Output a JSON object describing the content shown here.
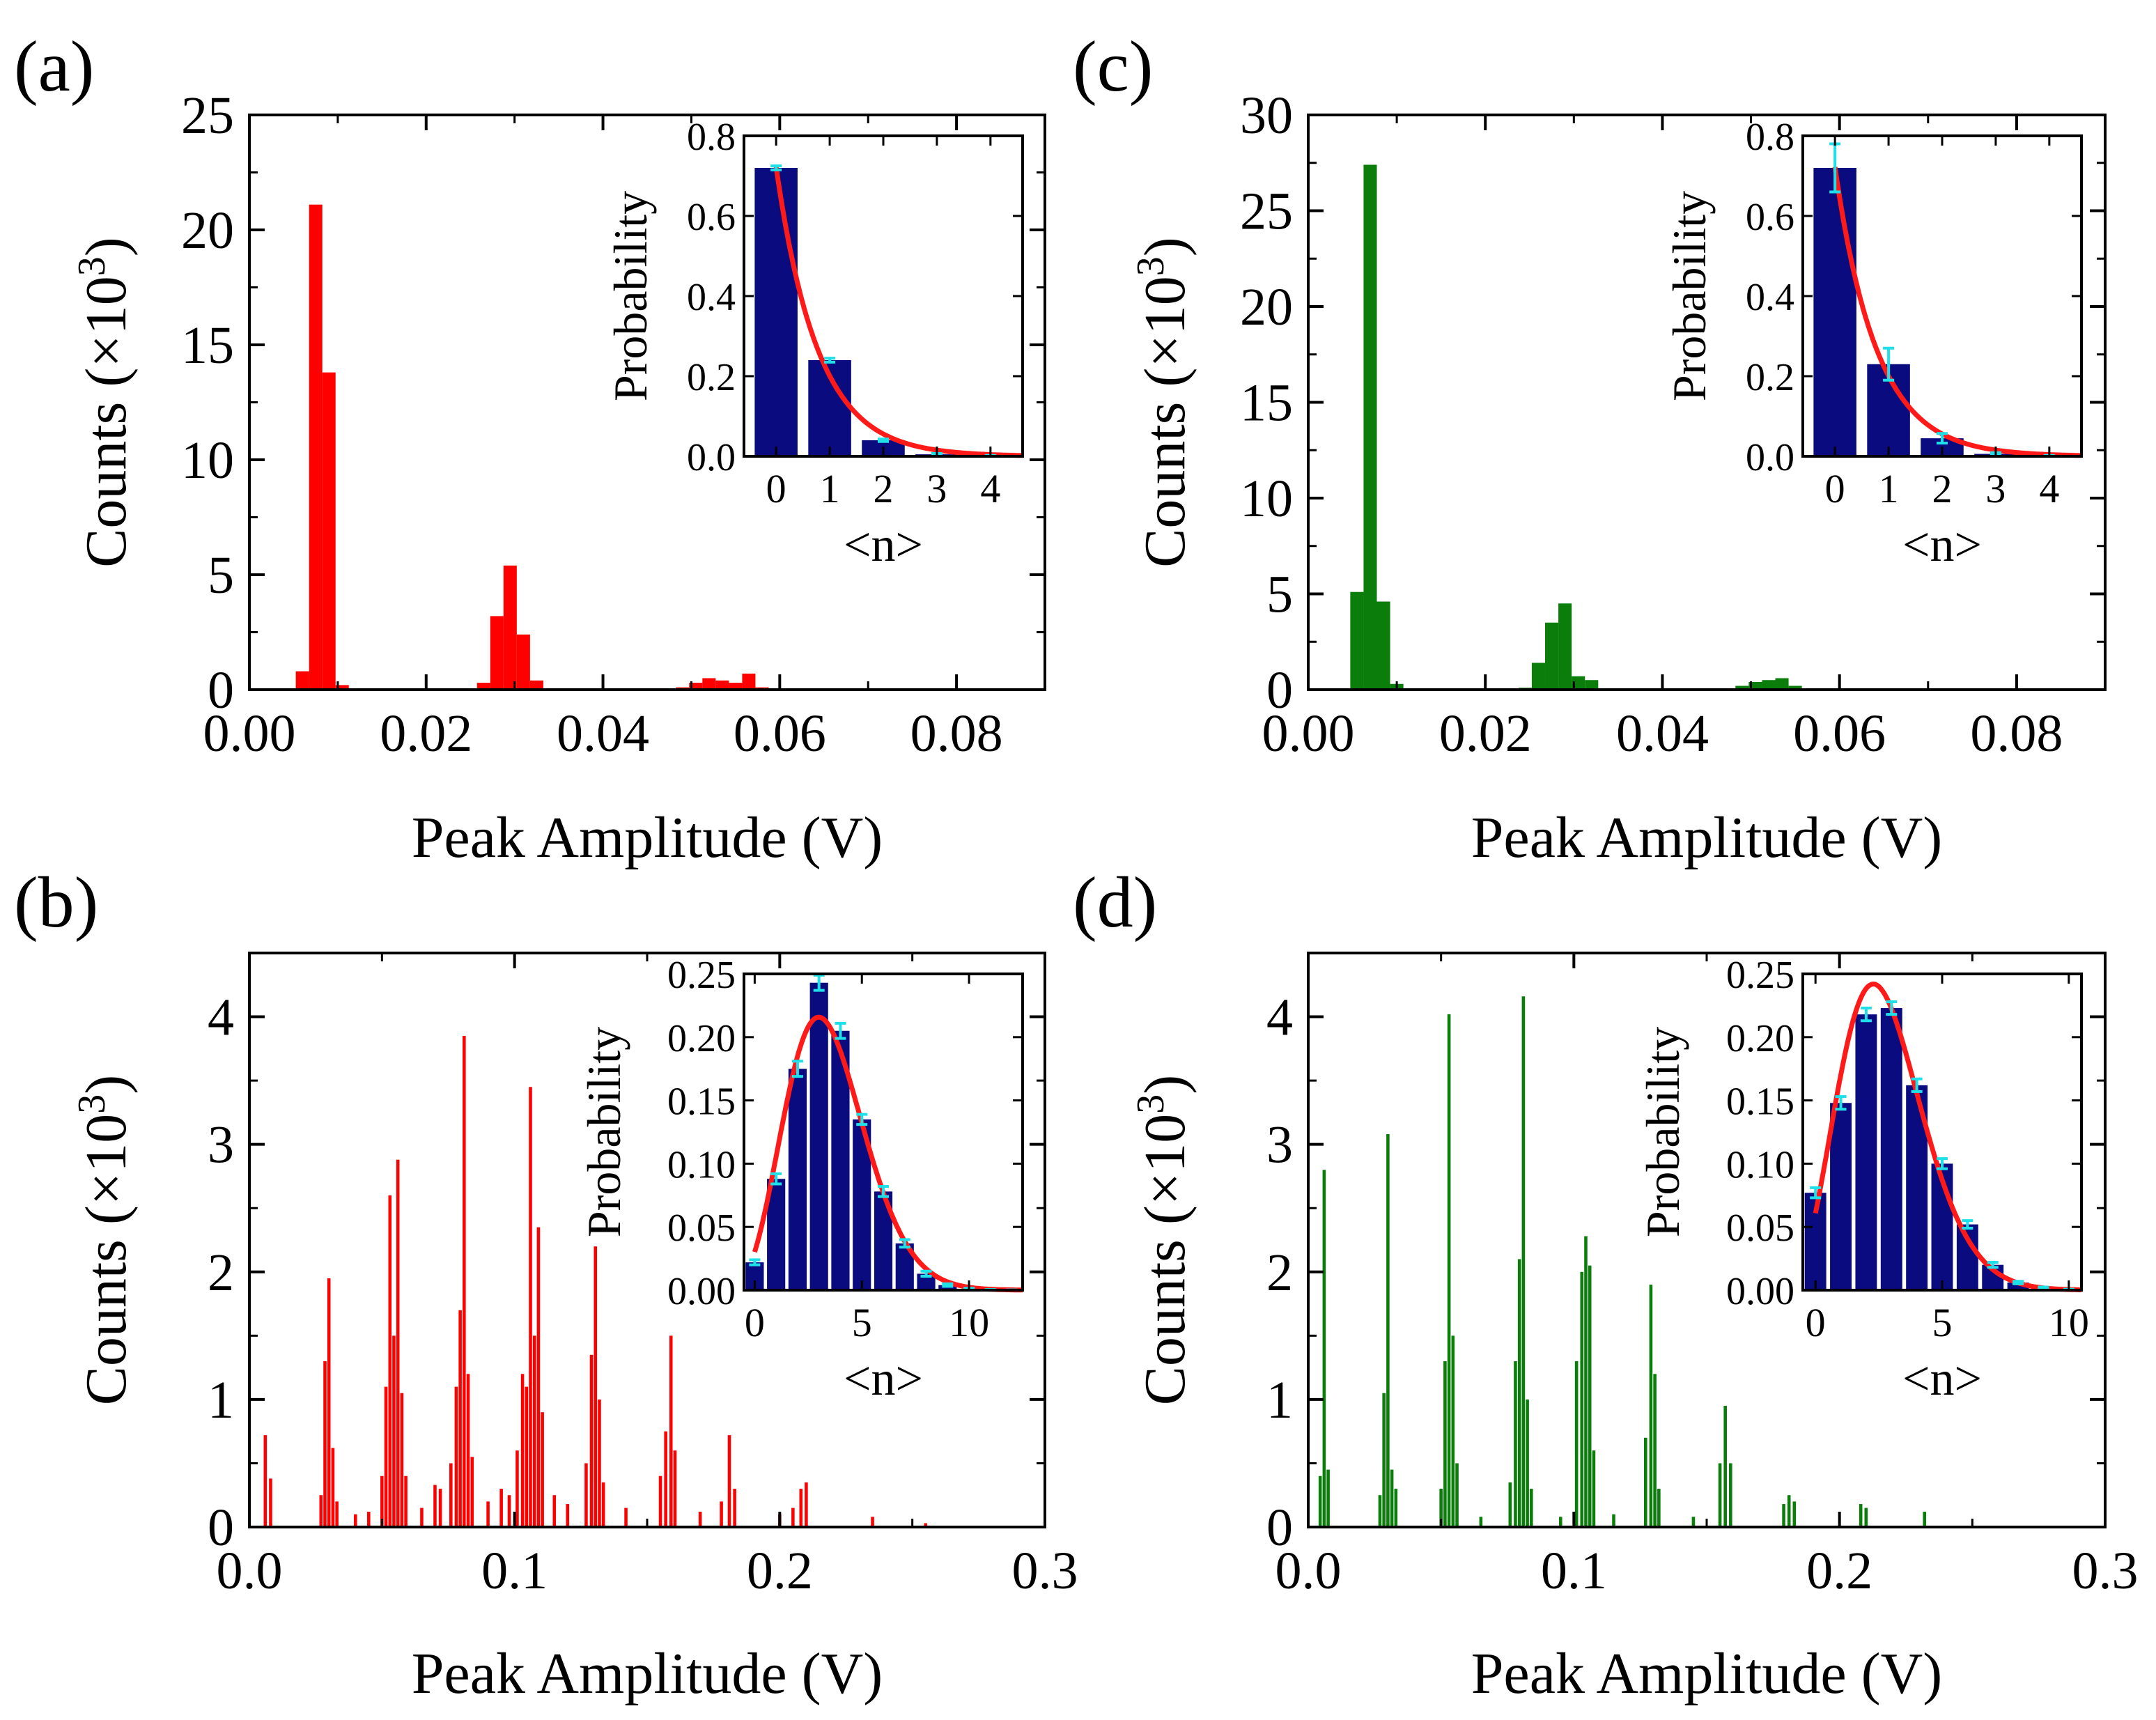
{
  "figure": {
    "colors": {
      "red_bars": "#ff0000",
      "green_bars": "#0a7d0a",
      "inset_bars": "#0b0b80",
      "fit_curve": "#ff1a1a",
      "error_bars": "#1fe0e8",
      "axis": "#000000"
    }
  },
  "chart_data": [
    {
      "panel": "(a)",
      "type": "bar",
      "color": "#ff0000",
      "xlabel": "Peak Amplitude (V)",
      "ylabel": "Counts (×10",
      "ylabel_sup": "3",
      "ylabel_close": ")",
      "xlim": [
        0,
        0.09
      ],
      "ylim": [
        0,
        25
      ],
      "xticks": [
        0.0,
        0.02,
        0.04,
        0.06,
        0.08
      ],
      "xtick_labels": [
        "0.00",
        "0.02",
        "0.04",
        "0.06",
        "0.08"
      ],
      "yticks": [
        0,
        5,
        10,
        15,
        20,
        25
      ],
      "ytick_labels": [
        "0",
        "5",
        "10",
        "15",
        "20",
        "25"
      ],
      "bin_width": 0.0015,
      "bars": [
        [
          0.006,
          0.8
        ],
        [
          0.0075,
          21.1
        ],
        [
          0.009,
          13.8
        ],
        [
          0.0105,
          0.2
        ],
        [
          0.0265,
          0.3
        ],
        [
          0.028,
          3.2
        ],
        [
          0.0295,
          5.4
        ],
        [
          0.031,
          2.4
        ],
        [
          0.0325,
          0.4
        ],
        [
          0.049,
          0.1
        ],
        [
          0.0505,
          0.3
        ],
        [
          0.052,
          0.5
        ],
        [
          0.0535,
          0.4
        ],
        [
          0.055,
          0.3
        ],
        [
          0.0565,
          0.7
        ],
        [
          0.058,
          0.1
        ],
        [
          0.08,
          0.05
        ]
      ],
      "inset": {
        "xlabel": "<n>",
        "ylabel": "Probability",
        "xlim": [
          -0.6,
          4.6
        ],
        "ylim": [
          0,
          0.8
        ],
        "xticks": [
          0,
          1,
          2,
          3,
          4
        ],
        "xtick_labels": [
          "0",
          "1",
          "2",
          "3",
          "4"
        ],
        "yticks": [
          0.0,
          0.2,
          0.4,
          0.6,
          0.8
        ],
        "ytick_labels": [
          "0.0",
          "0.2",
          "0.4",
          "0.6",
          "0.8"
        ],
        "bar_width": 0.8,
        "bars": [
          [
            0,
            0.72
          ],
          [
            1,
            0.24
          ],
          [
            2,
            0.04
          ],
          [
            3,
            0.005
          ],
          [
            4,
            0.001
          ]
        ],
        "errors": [
          0.005,
          0.005,
          0.003,
          0.002,
          0.001
        ],
        "fit": {
          "model": "thermal",
          "mean": 0.385
        }
      }
    },
    {
      "panel": "(b)",
      "type": "bar",
      "color": "#ff0000",
      "xlabel": "Peak Amplitude (V)",
      "ylabel": "Counts (×10",
      "ylabel_sup": "3",
      "ylabel_close": ")",
      "xlim": [
        0,
        0.3
      ],
      "ylim": [
        0,
        4.5
      ],
      "xticks": [
        0.0,
        0.1,
        0.2,
        0.3
      ],
      "xtick_labels": [
        "0.0",
        "0.1",
        "0.2",
        "0.3"
      ],
      "yticks": [
        0,
        1,
        2,
        3,
        4
      ],
      "ytick_labels": [
        "0",
        "1",
        "2",
        "3",
        "4"
      ],
      "bin_width": 0.0012,
      "bars": [
        [
          0.006,
          0.72
        ],
        [
          0.008,
          0.38
        ],
        [
          0.027,
          0.25
        ],
        [
          0.0285,
          1.3
        ],
        [
          0.03,
          1.95
        ],
        [
          0.0315,
          0.62
        ],
        [
          0.033,
          0.2
        ],
        [
          0.04,
          0.1
        ],
        [
          0.045,
          0.12
        ],
        [
          0.05,
          0.4
        ],
        [
          0.0515,
          1.1
        ],
        [
          0.053,
          2.6
        ],
        [
          0.0545,
          1.5
        ],
        [
          0.056,
          2.88
        ],
        [
          0.0575,
          1.05
        ],
        [
          0.059,
          0.4
        ],
        [
          0.065,
          0.15
        ],
        [
          0.07,
          0.33
        ],
        [
          0.072,
          0.3
        ],
        [
          0.076,
          0.5
        ],
        [
          0.078,
          1.1
        ],
        [
          0.0795,
          1.7
        ],
        [
          0.081,
          3.85
        ],
        [
          0.0825,
          1.2
        ],
        [
          0.084,
          0.55
        ],
        [
          0.09,
          0.2
        ],
        [
          0.095,
          0.3
        ],
        [
          0.098,
          0.25
        ],
        [
          0.101,
          0.6
        ],
        [
          0.103,
          1.2
        ],
        [
          0.1045,
          1.1
        ],
        [
          0.106,
          3.45
        ],
        [
          0.1075,
          1.5
        ],
        [
          0.109,
          2.35
        ],
        [
          0.1105,
          0.9
        ],
        [
          0.115,
          0.25
        ],
        [
          0.12,
          0.18
        ],
        [
          0.127,
          0.5
        ],
        [
          0.129,
          1.35
        ],
        [
          0.1305,
          2.2
        ],
        [
          0.132,
          1.0
        ],
        [
          0.1335,
          0.35
        ],
        [
          0.142,
          0.15
        ],
        [
          0.155,
          0.4
        ],
        [
          0.157,
          0.75
        ],
        [
          0.159,
          1.5
        ],
        [
          0.1605,
          0.6
        ],
        [
          0.17,
          0.12
        ],
        [
          0.178,
          0.2
        ],
        [
          0.181,
          0.72
        ],
        [
          0.183,
          0.3
        ],
        [
          0.2,
          0.1
        ],
        [
          0.205,
          0.15
        ],
        [
          0.208,
          0.3
        ],
        [
          0.21,
          0.35
        ],
        [
          0.235,
          0.08
        ],
        [
          0.255,
          0.03
        ]
      ],
      "inset": {
        "xlabel": "<n>",
        "ylabel": "Probability",
        "xlim": [
          -0.5,
          12.5
        ],
        "ylim": [
          0,
          0.25
        ],
        "xticks": [
          0,
          5,
          10
        ],
        "xtick_labels": [
          "0",
          "5",
          "10"
        ],
        "yticks": [
          0.0,
          0.05,
          0.1,
          0.15,
          0.2,
          0.25
        ],
        "ytick_labels": [
          "0.00",
          "0.05",
          "0.10",
          "0.15",
          "0.20",
          "0.25"
        ],
        "bar_width": 0.85,
        "bars": [
          [
            0,
            0.022
          ],
          [
            1,
            0.088
          ],
          [
            2,
            0.175
          ],
          [
            3,
            0.243
          ],
          [
            4,
            0.205
          ],
          [
            5,
            0.135
          ],
          [
            6,
            0.078
          ],
          [
            7,
            0.037
          ],
          [
            8,
            0.013
          ],
          [
            9,
            0.004
          ],
          [
            10,
            0.001
          ],
          [
            11,
            0.0003
          ],
          [
            12,
            0.0001
          ]
        ],
        "errors": [
          0.002,
          0.004,
          0.006,
          0.006,
          0.006,
          0.004,
          0.004,
          0.003,
          0.002,
          0.001,
          0.0005,
          0.0002,
          0.0001
        ],
        "fit": {
          "model": "poisson",
          "mean": 3.5
        }
      }
    },
    {
      "panel": "(c)",
      "type": "bar",
      "color": "#0a7d0a",
      "xlabel": "Peak Amplitude (V)",
      "ylabel": "Counts (×10",
      "ylabel_sup": "3",
      "ylabel_close": ")",
      "xlim": [
        0,
        0.09
      ],
      "ylim": [
        0,
        30
      ],
      "xticks": [
        0.0,
        0.02,
        0.04,
        0.06,
        0.08
      ],
      "xtick_labels": [
        "0.00",
        "0.02",
        "0.04",
        "0.06",
        "0.08"
      ],
      "yticks": [
        0,
        5,
        10,
        15,
        20,
        25,
        30
      ],
      "ytick_labels": [
        "0",
        "5",
        "10",
        "15",
        "20",
        "25",
        "30"
      ],
      "bin_width": 0.0015,
      "bars": [
        [
          0.0055,
          5.1
        ],
        [
          0.007,
          27.4
        ],
        [
          0.0085,
          4.6
        ],
        [
          0.01,
          0.3
        ],
        [
          0.0245,
          0.1
        ],
        [
          0.026,
          1.4
        ],
        [
          0.0275,
          3.5
        ],
        [
          0.029,
          4.5
        ],
        [
          0.0305,
          0.7
        ],
        [
          0.032,
          0.5
        ],
        [
          0.049,
          0.2
        ],
        [
          0.0505,
          0.4
        ],
        [
          0.052,
          0.5
        ],
        [
          0.0535,
          0.6
        ],
        [
          0.055,
          0.2
        ]
      ],
      "inset": {
        "xlabel": "<n>",
        "ylabel": "Probability",
        "xlim": [
          -0.6,
          4.6
        ],
        "ylim": [
          0,
          0.8
        ],
        "xticks": [
          0,
          1,
          2,
          3,
          4
        ],
        "xtick_labels": [
          "0",
          "1",
          "2",
          "3",
          "4"
        ],
        "yticks": [
          0.0,
          0.2,
          0.4,
          0.6,
          0.8
        ],
        "ytick_labels": [
          "0.0",
          "0.2",
          "0.4",
          "0.6",
          "0.8"
        ],
        "bar_width": 0.8,
        "bars": [
          [
            0,
            0.72
          ],
          [
            1,
            0.23
          ],
          [
            2,
            0.045
          ],
          [
            3,
            0.006
          ],
          [
            4,
            0.001
          ]
        ],
        "errors": [
          0.06,
          0.04,
          0.012,
          0.003,
          0.001
        ],
        "fit": {
          "model": "thermal",
          "mean": 0.385
        }
      }
    },
    {
      "panel": "(d)",
      "type": "bar",
      "color": "#0a7d0a",
      "xlabel": "Peak Amplitude (V)",
      "ylabel": "Counts (×10",
      "ylabel_sup": "3",
      "ylabel_close": ")",
      "xlim": [
        0,
        0.3
      ],
      "ylim": [
        0,
        4.5
      ],
      "xticks": [
        0.0,
        0.1,
        0.2,
        0.3
      ],
      "xtick_labels": [
        "0.0",
        "0.1",
        "0.2",
        "0.3"
      ],
      "yticks": [
        0,
        1,
        2,
        3,
        4
      ],
      "ytick_labels": [
        "0",
        "1",
        "2",
        "3",
        "4"
      ],
      "bin_width": 0.0012,
      "bars": [
        [
          0.0045,
          0.4
        ],
        [
          0.006,
          2.8
        ],
        [
          0.0075,
          0.45
        ],
        [
          0.027,
          0.25
        ],
        [
          0.0285,
          1.05
        ],
        [
          0.03,
          3.08
        ],
        [
          0.0315,
          0.45
        ],
        [
          0.033,
          0.3
        ],
        [
          0.05,
          0.3
        ],
        [
          0.0515,
          1.3
        ],
        [
          0.053,
          4.02
        ],
        [
          0.0545,
          1.5
        ],
        [
          0.056,
          0.5
        ],
        [
          0.065,
          0.08
        ],
        [
          0.076,
          0.35
        ],
        [
          0.078,
          1.3
        ],
        [
          0.0795,
          2.1
        ],
        [
          0.081,
          4.16
        ],
        [
          0.0825,
          1.0
        ],
        [
          0.084,
          0.3
        ],
        [
          0.095,
          0.08
        ],
        [
          0.101,
          1.3
        ],
        [
          0.103,
          2.0
        ],
        [
          0.1045,
          2.28
        ],
        [
          0.106,
          2.05
        ],
        [
          0.1075,
          0.6
        ],
        [
          0.115,
          0.1
        ],
        [
          0.127,
          0.7
        ],
        [
          0.129,
          1.9
        ],
        [
          0.1305,
          1.2
        ],
        [
          0.132,
          0.3
        ],
        [
          0.145,
          0.08
        ],
        [
          0.155,
          0.5
        ],
        [
          0.157,
          0.95
        ],
        [
          0.159,
          0.5
        ],
        [
          0.179,
          0.18
        ],
        [
          0.181,
          0.25
        ],
        [
          0.183,
          0.2
        ],
        [
          0.208,
          0.18
        ],
        [
          0.21,
          0.15
        ],
        [
          0.232,
          0.12
        ]
      ],
      "inset": {
        "xlabel": "<n>",
        "ylabel": "Probability",
        "xlim": [
          -0.5,
          10.5
        ],
        "ylim": [
          0,
          0.25
        ],
        "xticks": [
          0,
          5,
          10
        ],
        "xtick_labels": [
          "0",
          "5",
          "10"
        ],
        "yticks": [
          0.0,
          0.05,
          0.1,
          0.15,
          0.2,
          0.25
        ],
        "ytick_labels": [
          "0.00",
          "0.05",
          "0.10",
          "0.15",
          "0.20",
          "0.25"
        ],
        "bar_width": 0.85,
        "bars": [
          [
            0,
            0.077
          ],
          [
            1,
            0.148
          ],
          [
            2,
            0.218
          ],
          [
            3,
            0.223
          ],
          [
            4,
            0.162
          ],
          [
            5,
            0.1
          ],
          [
            6,
            0.052
          ],
          [
            7,
            0.02
          ],
          [
            8,
            0.006
          ],
          [
            9,
            0.002
          ],
          [
            10,
            0.0005
          ]
        ],
        "errors": [
          0.004,
          0.005,
          0.005,
          0.005,
          0.005,
          0.004,
          0.003,
          0.002,
          0.001,
          0.0005,
          0.0002
        ],
        "fit": {
          "model": "poisson",
          "mean": 2.8
        }
      }
    }
  ]
}
